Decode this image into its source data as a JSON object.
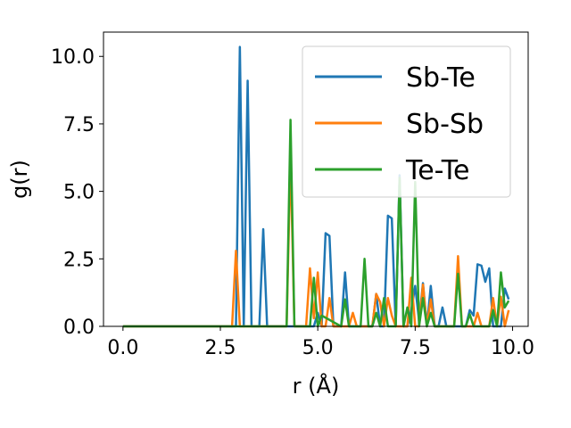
{
  "chart_data": {
    "type": "line",
    "xlabel": "r (Å)",
    "ylabel": "g(r)",
    "xlim": [
      -0.5,
      10.4
    ],
    "ylim": [
      0,
      10.9
    ],
    "xticks": [
      "0.0",
      "2.5",
      "5.0",
      "7.5",
      "10.0"
    ],
    "xtick_values": [
      0,
      2.5,
      5.0,
      7.5,
      10.0
    ],
    "yticks": [
      "0.0",
      "2.5",
      "5.0",
      "7.5",
      "10.0"
    ],
    "ytick_values": [
      0,
      2.5,
      5.0,
      7.5,
      10.0
    ],
    "grid": false,
    "legend_position": "top-right",
    "series": [
      {
        "name": "Sb-Te",
        "color": "#1f77b4",
        "x": [
          0,
          2.9,
          3.0,
          3.1,
          3.2,
          3.3,
          3.5,
          3.6,
          3.7,
          4.9,
          5.0,
          5.1,
          5.2,
          5.3,
          5.4,
          5.6,
          5.7,
          5.8,
          6.4,
          6.5,
          6.6,
          6.7,
          6.8,
          6.9,
          7.0,
          7.1,
          7.2,
          7.3,
          7.4,
          7.5,
          7.6,
          7.7,
          7.8,
          7.9,
          8.0,
          8.1,
          8.2,
          8.3,
          8.8,
          8.9,
          9.0,
          9.1,
          9.2,
          9.3,
          9.4,
          9.5,
          9.6,
          9.7,
          9.8,
          9.9
        ],
        "y": [
          0,
          0,
          10.35,
          0,
          9.1,
          0,
          0,
          3.6,
          0,
          0,
          0.5,
          0,
          3.45,
          3.35,
          0,
          0,
          2.0,
          0,
          0,
          1.2,
          0,
          0,
          4.1,
          4.0,
          0,
          5.6,
          0,
          0,
          0.6,
          1.5,
          0.2,
          1.6,
          0,
          1.5,
          0,
          0,
          0.7,
          0,
          0,
          0.6,
          0.4,
          2.3,
          2.25,
          1.65,
          2.15,
          0,
          0,
          0,
          1.4,
          1.0
        ]
      },
      {
        "name": "Sb-Sb",
        "color": "#ff7f0e",
        "x": [
          0,
          2.8,
          2.9,
          3.0,
          4.2,
          4.3,
          4.4,
          4.7,
          4.8,
          4.9,
          5.0,
          5.1,
          5.2,
          5.3,
          5.4,
          5.8,
          5.9,
          6.0,
          6.4,
          6.5,
          6.6,
          6.7,
          6.8,
          6.9,
          7.0,
          7.3,
          7.4,
          7.5,
          7.6,
          7.7,
          7.8,
          7.9,
          8.0,
          8.5,
          8.6,
          8.7,
          9.0,
          9.1,
          9.2,
          9.3,
          9.4,
          9.5,
          9.6,
          9.7,
          9.8,
          9.9
        ],
        "y": [
          0,
          0,
          2.8,
          0,
          0,
          6.3,
          0,
          0,
          2.15,
          0.3,
          2.0,
          0,
          0,
          1.05,
          0,
          0,
          0.5,
          0,
          0,
          1.2,
          0.9,
          0,
          1.05,
          0.4,
          0,
          0,
          1.8,
          0,
          0,
          1.55,
          0,
          1.0,
          0,
          0,
          2.6,
          0,
          0,
          0.5,
          0,
          0,
          0,
          1.05,
          0,
          1.1,
          0,
          0.6
        ]
      },
      {
        "name": "Te-Te",
        "color": "#2ca02c",
        "x": [
          0,
          4.2,
          4.3,
          4.4,
          4.8,
          4.9,
          5.0,
          5.1,
          5.6,
          5.7,
          5.8,
          6.1,
          6.2,
          6.3,
          6.4,
          6.5,
          6.6,
          6.7,
          6.8,
          6.9,
          7.0,
          7.1,
          7.2,
          7.3,
          7.4,
          7.5,
          7.6,
          7.7,
          7.8,
          7.9,
          8.0,
          8.5,
          8.6,
          8.7,
          8.8,
          8.9,
          9.0,
          9.1,
          9.3,
          9.4,
          9.5,
          9.6,
          9.7,
          9.8,
          9.9
        ],
        "y": [
          0,
          0,
          7.65,
          0,
          0,
          1.8,
          0,
          0.4,
          0,
          1.0,
          0,
          0,
          2.5,
          0,
          0,
          0.5,
          0,
          1.05,
          0,
          0,
          0,
          5.5,
          0,
          0.7,
          0,
          5.35,
          0,
          1.05,
          0,
          0.5,
          0,
          0,
          1.95,
          0,
          0,
          0.45,
          0,
          0,
          0,
          0,
          0.6,
          0,
          2.0,
          0.7,
          0.95
        ]
      }
    ]
  }
}
